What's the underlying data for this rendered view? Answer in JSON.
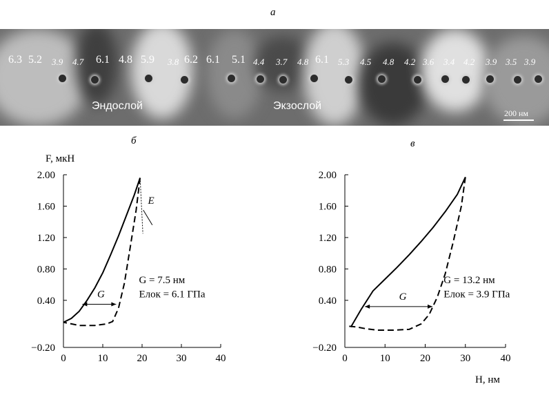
{
  "panels": {
    "a": "а",
    "b": "б",
    "c": "в"
  },
  "afm_image": {
    "modulus_values": [
      {
        "text": "6.3",
        "italic": false
      },
      {
        "text": "5.2",
        "italic": false
      },
      {
        "text": "3.9",
        "italic": true
      },
      {
        "text": "4.7",
        "italic": true
      },
      {
        "text": "6.1",
        "italic": false
      },
      {
        "text": "4.8",
        "italic": false
      },
      {
        "text": "5.9",
        "italic": false
      },
      {
        "text": "3.8",
        "italic": true
      },
      {
        "text": "6.2",
        "italic": false
      },
      {
        "text": "6.1",
        "italic": false
      },
      {
        "text": "5.1",
        "italic": false
      },
      {
        "text": "4.4",
        "italic": true
      },
      {
        "text": "3.7",
        "italic": true
      },
      {
        "text": "4.8",
        "italic": true
      },
      {
        "text": "6.1",
        "italic": false
      },
      {
        "text": "5.3",
        "italic": true
      },
      {
        "text": "4.5",
        "italic": true
      },
      {
        "text": "4.8",
        "italic": true
      },
      {
        "text": "4.2",
        "italic": true
      },
      {
        "text": "3.6",
        "italic": true
      },
      {
        "text": "3.4",
        "italic": true
      },
      {
        "text": "4.2",
        "italic": true
      },
      {
        "text": "3.9",
        "italic": true
      },
      {
        "text": "3.5",
        "italic": true
      },
      {
        "text": "3.9",
        "italic": true
      }
    ],
    "endolayer_label": "Эндослой",
    "exolayer_label": "Экзослой",
    "scale_bar_label": "200 нм"
  },
  "chart_data": [
    {
      "type": "line",
      "panel": "б",
      "ylabel": "F, мкН",
      "xlabel": "",
      "xlim": [
        0,
        40
      ],
      "ylim": [
        -0.2,
        2.0
      ],
      "x_ticks": [
        "0",
        "10",
        "20",
        "30",
        "40"
      ],
      "y_ticks": [
        "−0.20",
        "0.40",
        "0.80",
        "1.20",
        "1.60",
        "2.00"
      ],
      "series": [
        {
          "style": "solid",
          "points": [
            [
              0,
              0.12
            ],
            [
              2,
              0.17
            ],
            [
              4,
              0.26
            ],
            [
              6,
              0.4
            ],
            [
              8,
              0.56
            ],
            [
              10,
              0.75
            ],
            [
              12,
              0.98
            ],
            [
              14,
              1.22
            ],
            [
              16,
              1.48
            ],
            [
              18,
              1.74
            ],
            [
              19.5,
              1.96
            ]
          ]
        },
        {
          "style": "dashed",
          "points": [
            [
              19.5,
              1.96
            ],
            [
              18.5,
              1.55
            ],
            [
              17,
              1.08
            ],
            [
              15.5,
              0.62
            ],
            [
              14,
              0.3
            ],
            [
              12.5,
              0.13
            ],
            [
              11,
              0.1
            ],
            [
              8,
              0.08
            ],
            [
              4,
              0.08
            ],
            [
              2,
              0.1
            ],
            [
              0,
              0.12
            ]
          ]
        }
      ],
      "annotations": {
        "E": "E",
        "G": "G",
        "G_value": "G = 7.5 нм",
        "E_value": "Eлок = 6.1 ГПа"
      }
    },
    {
      "type": "line",
      "panel": "в",
      "ylabel": "",
      "xlabel": "H, нм",
      "xlim": [
        0,
        40
      ],
      "ylim": [
        -0.2,
        2.0
      ],
      "x_ticks": [
        "0",
        "10",
        "20",
        "30",
        "40"
      ],
      "y_ticks": [
        "−0.20",
        "0.40",
        "0.80",
        "1.20",
        "1.60",
        "2.00"
      ],
      "series": [
        {
          "style": "solid",
          "points": [
            [
              1.5,
              0.06
            ],
            [
              4,
              0.28
            ],
            [
              7,
              0.52
            ],
            [
              10,
              0.67
            ],
            [
              13,
              0.82
            ],
            [
              16,
              0.98
            ],
            [
              19,
              1.15
            ],
            [
              22,
              1.33
            ],
            [
              25,
              1.53
            ],
            [
              28,
              1.75
            ],
            [
              30,
              1.97
            ]
          ]
        },
        {
          "style": "dashed",
          "points": [
            [
              30,
              1.97
            ],
            [
              29,
              1.6
            ],
            [
              27,
              1.15
            ],
            [
              25,
              0.74
            ],
            [
              23,
              0.44
            ],
            [
              21,
              0.22
            ],
            [
              19,
              0.1
            ],
            [
              16,
              0.03
            ],
            [
              12,
              0.02
            ],
            [
              8,
              0.02
            ],
            [
              5,
              0.04
            ],
            [
              3,
              0.06
            ],
            [
              1,
              0.07
            ]
          ]
        }
      ],
      "annotations": {
        "G": "G",
        "G_value": "G = 13.2 нм",
        "E_value": "Eлок = 3.9 ГПа"
      }
    }
  ]
}
